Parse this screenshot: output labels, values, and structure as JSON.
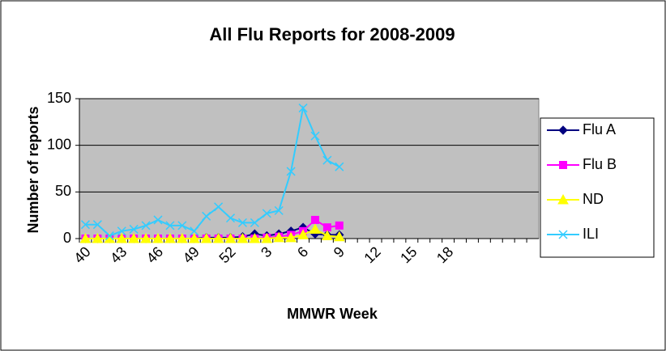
{
  "chart_data": {
    "type": "line",
    "title": "All Flu Reports for 2008-2009",
    "x_label": "MMWR Week",
    "y_label": "Number of reports",
    "categories": [
      "40",
      null,
      null,
      "43",
      null,
      null,
      "46",
      null,
      null,
      "49",
      null,
      null,
      "52",
      null,
      null,
      "3",
      null,
      null,
      "6",
      null,
      null,
      "9",
      null,
      null,
      "12",
      null,
      null,
      "15",
      null,
      null,
      "18",
      null,
      null,
      null,
      null,
      null,
      null,
      null
    ],
    "series": [
      {
        "name": "Flu A",
        "color": "#000080",
        "marker": "diamond",
        "values": [
          0,
          0,
          0,
          0,
          0,
          0,
          0,
          0,
          0,
          0,
          1,
          1,
          1,
          2,
          5,
          3,
          5,
          8,
          12,
          5,
          4,
          4,
          null,
          null,
          null,
          null,
          null,
          null,
          null,
          null,
          null,
          null,
          null,
          null,
          null,
          null,
          null,
          null
        ]
      },
      {
        "name": "Flu B",
        "color": "#ff00ff",
        "marker": "square",
        "values": [
          0,
          0,
          0,
          0,
          0,
          0,
          0,
          0,
          0,
          0,
          0,
          0,
          0,
          0,
          0,
          1,
          2,
          4,
          8,
          20,
          12,
          14,
          null,
          null,
          null,
          null,
          null,
          null,
          null,
          null,
          null,
          null,
          null,
          null,
          null,
          null,
          null,
          null
        ]
      },
      {
        "name": "ND",
        "color": "#ffff00",
        "marker": "triangle",
        "values": [
          0,
          0,
          0,
          0,
          0,
          0,
          0,
          0,
          0,
          0,
          0,
          0,
          0,
          0,
          0,
          0,
          1,
          1,
          4,
          10,
          3,
          2,
          null,
          null,
          null,
          null,
          null,
          null,
          null,
          null,
          null,
          null,
          null,
          null,
          null,
          null,
          null,
          null
        ]
      },
      {
        "name": "ILI",
        "color": "#33ccff",
        "marker": "x",
        "values": [
          15,
          15,
          3,
          8,
          10,
          14,
          20,
          14,
          14,
          8,
          24,
          34,
          22,
          17,
          17,
          27,
          30,
          72,
          140,
          110,
          84,
          77,
          null,
          null,
          null,
          null,
          null,
          null,
          null,
          null,
          null,
          null,
          null,
          null,
          null,
          null,
          null,
          null
        ]
      }
    ],
    "ylim": [
      0,
      150
    ],
    "yticks": [
      0,
      50,
      100,
      150
    ],
    "grid": true,
    "plot_background": "#c0c0c0",
    "legend": "right"
  }
}
